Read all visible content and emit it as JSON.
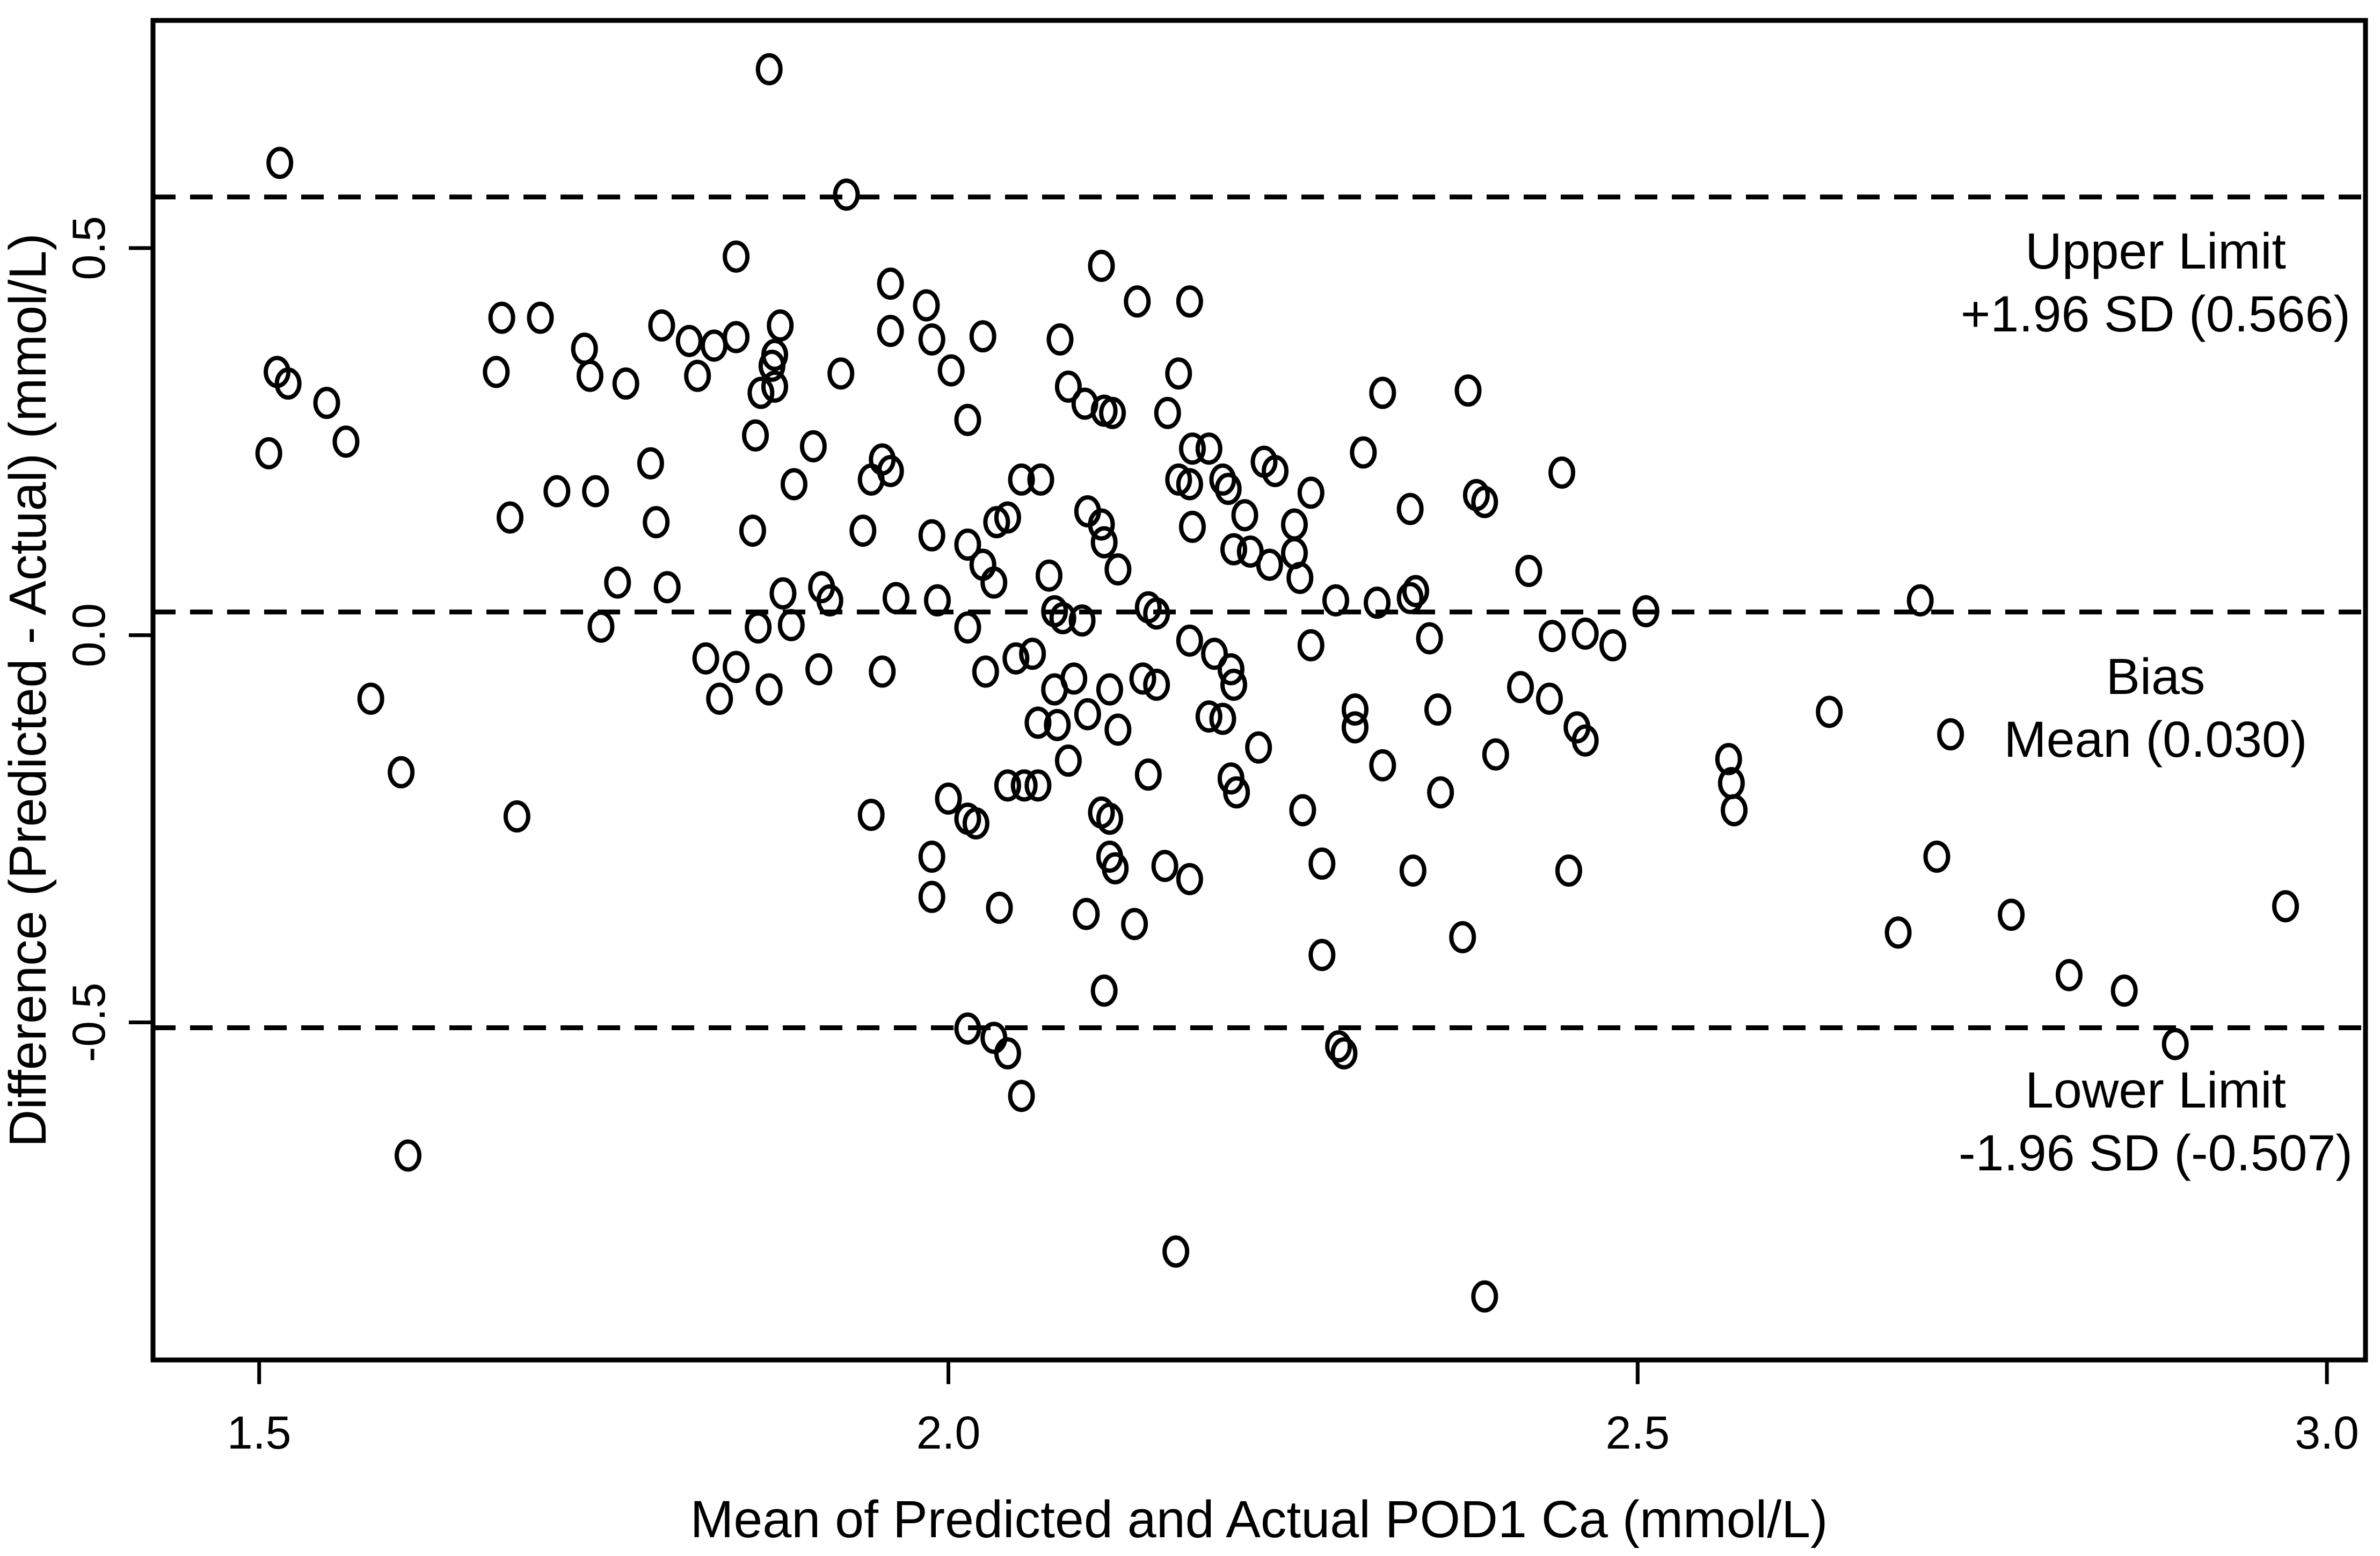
{
  "figure_background": "#ffffff",
  "stroke_color": "#000000",
  "chart_data": {
    "type": "scatter",
    "title": "",
    "xlabel": "Mean of Predicted and Actual POD1 Ca (mmol/L)",
    "ylabel": "Difference (Predicted - Actual) (mmol/L)",
    "xlim": [
      1.423,
      3.028
    ],
    "ylim": [
      -0.936,
      0.794
    ],
    "grid": false,
    "legend": "none",
    "marker": "open-circle",
    "x_ticks": [
      {
        "value": 1.5,
        "label": "1.5"
      },
      {
        "value": 2.0,
        "label": "2.0"
      },
      {
        "value": 2.5,
        "label": "2.5"
      },
      {
        "value": 3.0,
        "label": "3.0"
      }
    ],
    "y_ticks": [
      {
        "value": 0.5,
        "label": "0.5"
      },
      {
        "value": 0.0,
        "label": "0.0"
      },
      {
        "value": -0.5,
        "label": "-0.5"
      }
    ],
    "reference_lines": [
      {
        "name": "upper_limit",
        "value": 0.566,
        "label_line1": "Upper Limit",
        "label_line2": "+1.96 SD (0.566)"
      },
      {
        "name": "bias",
        "value": 0.03,
        "label_line1": "Bias",
        "label_line2": "Mean (0.030)"
      },
      {
        "name": "lower_limit",
        "value": -0.507,
        "label_line1": "Lower Limit",
        "label_line2": "-1.96 SD (-0.507)"
      }
    ],
    "points": [
      [
        1.515,
        0.61
      ],
      [
        1.513,
        0.34
      ],
      [
        1.521,
        0.325
      ],
      [
        1.549,
        0.3
      ],
      [
        1.563,
        0.25
      ],
      [
        1.507,
        0.235
      ],
      [
        1.676,
        0.41
      ],
      [
        1.704,
        0.41
      ],
      [
        1.672,
        0.34
      ],
      [
        1.736,
        0.37
      ],
      [
        1.74,
        0.335
      ],
      [
        1.766,
        0.325
      ],
      [
        1.792,
        0.4
      ],
      [
        1.812,
        0.38
      ],
      [
        1.818,
        0.335
      ],
      [
        1.784,
        0.222
      ],
      [
        1.87,
        0.731
      ],
      [
        1.926,
        0.569
      ],
      [
        1.846,
        0.489
      ],
      [
        1.958,
        0.454
      ],
      [
        1.984,
        0.426
      ],
      [
        1.846,
        0.385
      ],
      [
        1.83,
        0.374
      ],
      [
        1.878,
        0.4
      ],
      [
        1.874,
        0.362
      ],
      [
        1.872,
        0.348
      ],
      [
        1.958,
        0.393
      ],
      [
        1.988,
        0.382
      ],
      [
        2.002,
        0.342
      ],
      [
        2.025,
        0.386
      ],
      [
        1.922,
        0.338
      ],
      [
        1.864,
        0.313
      ],
      [
        1.874,
        0.321
      ],
      [
        1.86,
        0.258
      ],
      [
        1.902,
        0.244
      ],
      [
        2.014,
        0.278
      ],
      [
        1.952,
        0.227
      ],
      [
        2.081,
        0.382
      ],
      [
        2.111,
        0.477
      ],
      [
        2.137,
        0.431
      ],
      [
        2.175,
        0.431
      ],
      [
        2.087,
        0.321
      ],
      [
        2.099,
        0.299
      ],
      [
        2.113,
        0.29
      ],
      [
        2.119,
        0.287
      ],
      [
        2.159,
        0.287
      ],
      [
        2.167,
        0.338
      ],
      [
        2.177,
        0.241
      ],
      [
        2.189,
        0.241
      ],
      [
        2.315,
        0.313
      ],
      [
        2.377,
        0.316
      ],
      [
        2.301,
        0.236
      ],
      [
        2.229,
        0.224
      ],
      [
        2.445,
        0.21
      ],
      [
        1.716,
        0.186
      ],
      [
        1.744,
        0.186
      ],
      [
        1.682,
        0.152
      ],
      [
        1.788,
        0.146
      ],
      [
        1.76,
        0.068
      ],
      [
        1.796,
        0.062
      ],
      [
        1.748,
        0.011
      ],
      [
        1.824,
        -0.03
      ],
      [
        1.581,
        -0.082
      ],
      [
        1.603,
        -0.177
      ],
      [
        1.687,
        -0.234
      ],
      [
        1.888,
        0.195
      ],
      [
        1.944,
        0.201
      ],
      [
        1.958,
        0.212
      ],
      [
        2.053,
        0.201
      ],
      [
        2.067,
        0.201
      ],
      [
        2.167,
        0.201
      ],
      [
        2.175,
        0.195
      ],
      [
        2.199,
        0.201
      ],
      [
        2.203,
        0.189
      ],
      [
        1.858,
        0.135
      ],
      [
        1.938,
        0.135
      ],
      [
        1.988,
        0.129
      ],
      [
        2.035,
        0.146
      ],
      [
        2.043,
        0.152
      ],
      [
        2.101,
        0.16
      ],
      [
        2.111,
        0.143
      ],
      [
        2.113,
        0.12
      ],
      [
        2.177,
        0.14
      ],
      [
        2.215,
        0.155
      ],
      [
        2.014,
        0.117
      ],
      [
        2.025,
        0.091
      ],
      [
        2.033,
        0.068
      ],
      [
        2.073,
        0.077
      ],
      [
        2.123,
        0.085
      ],
      [
        2.207,
        0.111
      ],
      [
        2.219,
        0.108
      ],
      [
        1.88,
        0.054
      ],
      [
        1.908,
        0.062
      ],
      [
        1.914,
        0.045
      ],
      [
        1.962,
        0.048
      ],
      [
        1.992,
        0.045
      ],
      [
        1.862,
        0.01
      ],
      [
        1.886,
        0.013
      ],
      [
        2.014,
        0.01
      ],
      [
        2.077,
        0.031
      ],
      [
        2.083,
        0.022
      ],
      [
        2.097,
        0.019
      ],
      [
        2.145,
        0.036
      ],
      [
        2.151,
        0.028
      ],
      [
        2.175,
        -0.007
      ],
      [
        1.846,
        -0.041
      ],
      [
        1.834,
        -0.082
      ],
      [
        1.87,
        -0.07
      ],
      [
        1.906,
        -0.044
      ],
      [
        1.952,
        -0.047
      ],
      [
        2.027,
        -0.047
      ],
      [
        2.049,
        -0.03
      ],
      [
        2.061,
        -0.024
      ],
      [
        2.193,
        -0.024
      ],
      [
        2.205,
        -0.044
      ],
      [
        2.207,
        -0.064
      ],
      [
        2.077,
        -0.07
      ],
      [
        2.091,
        -0.056
      ],
      [
        2.117,
        -0.07
      ],
      [
        2.141,
        -0.056
      ],
      [
        2.151,
        -0.064
      ],
      [
        2.065,
        -0.113
      ],
      [
        2.079,
        -0.116
      ],
      [
        2.101,
        -0.102
      ],
      [
        2.123,
        -0.122
      ],
      [
        2.189,
        -0.105
      ],
      [
        2.199,
        -0.108
      ],
      [
        2.087,
        -0.162
      ],
      [
        2.043,
        -0.194
      ],
      [
        2.055,
        -0.194
      ],
      [
        2.065,
        -0.194
      ],
      [
        2.145,
        -0.18
      ],
      [
        2.111,
        -0.229
      ],
      [
        2.117,
        -0.237
      ],
      [
        2.205,
        -0.185
      ],
      [
        2.209,
        -0.203
      ],
      [
        1.944,
        -0.232
      ],
      [
        2.0,
        -0.211
      ],
      [
        2.014,
        -0.237
      ],
      [
        2.02,
        -0.243
      ],
      [
        1.988,
        -0.286
      ],
      [
        2.117,
        -0.286
      ],
      [
        2.121,
        -0.301
      ],
      [
        2.157,
        -0.298
      ],
      [
        2.175,
        -0.315
      ],
      [
        1.988,
        -0.338
      ],
      [
        2.037,
        -0.352
      ],
      [
        2.1,
        -0.36
      ],
      [
        2.237,
        0.212
      ],
      [
        2.263,
        0.184
      ],
      [
        2.335,
        0.163
      ],
      [
        2.383,
        0.181
      ],
      [
        2.389,
        0.172
      ],
      [
        2.251,
        0.143
      ],
      [
        2.233,
        0.091
      ],
      [
        2.251,
        0.106
      ],
      [
        2.255,
        0.074
      ],
      [
        2.421,
        0.083
      ],
      [
        2.281,
        0.045
      ],
      [
        2.311,
        0.042
      ],
      [
        2.335,
        0.048
      ],
      [
        2.339,
        0.057
      ],
      [
        2.506,
        0.031
      ],
      [
        2.263,
        -0.013
      ],
      [
        2.349,
        -0.004
      ],
      [
        2.438,
        -0.001
      ],
      [
        2.462,
        0.002
      ],
      [
        2.482,
        -0.013
      ],
      [
        2.415,
        -0.067
      ],
      [
        2.436,
        -0.082
      ],
      [
        2.456,
        -0.119
      ],
      [
        2.462,
        -0.136
      ],
      [
        2.295,
        -0.096
      ],
      [
        2.295,
        -0.119
      ],
      [
        2.355,
        -0.096
      ],
      [
        2.315,
        -0.168
      ],
      [
        2.357,
        -0.203
      ],
      [
        2.397,
        -0.154
      ],
      [
        2.225,
        -0.145
      ],
      [
        2.257,
        -0.226
      ],
      [
        2.271,
        -0.295
      ],
      [
        2.337,
        -0.304
      ],
      [
        2.45,
        -0.304
      ],
      [
        2.566,
        -0.16
      ],
      [
        2.568,
        -0.191
      ],
      [
        2.57,
        -0.226
      ],
      [
        2.705,
        0.045
      ],
      [
        2.639,
        -0.099
      ],
      [
        2.727,
        -0.128
      ],
      [
        2.717,
        -0.286
      ],
      [
        2.97,
        -0.35
      ],
      [
        1.608,
        -0.672
      ],
      [
        2.135,
        -0.373
      ],
      [
        2.113,
        -0.459
      ],
      [
        2.014,
        -0.508
      ],
      [
        2.033,
        -0.52
      ],
      [
        2.043,
        -0.54
      ],
      [
        2.053,
        -0.595
      ],
      [
        2.165,
        -0.796
      ],
      [
        2.271,
        -0.413
      ],
      [
        2.373,
        -0.39
      ],
      [
        2.283,
        -0.531
      ],
      [
        2.287,
        -0.54
      ],
      [
        2.389,
        -0.854
      ],
      [
        2.689,
        -0.384
      ],
      [
        2.771,
        -0.361
      ],
      [
        2.813,
        -0.439
      ],
      [
        2.853,
        -0.459
      ],
      [
        2.89,
        -0.528
      ]
    ]
  }
}
